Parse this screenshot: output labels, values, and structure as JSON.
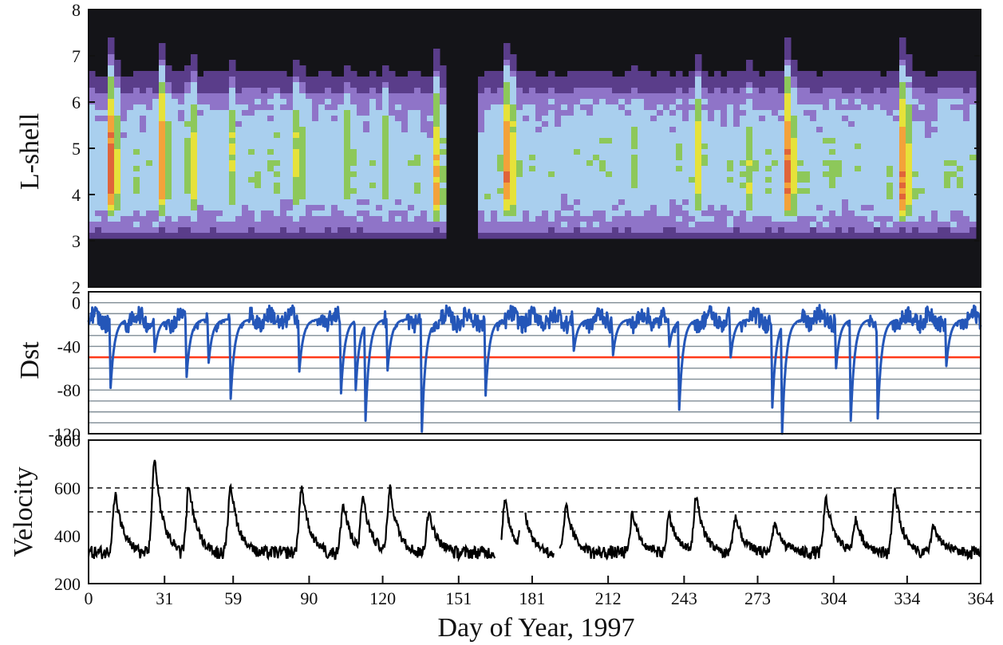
{
  "figure": {
    "xlabel": "Day of Year, 1997"
  },
  "colors": {
    "background_dark": "#141418",
    "dst_line": "#2456b8",
    "dst_threshold": "#ff3a1a",
    "dst_grid": "#7f8c95",
    "velocity_line": "#000000",
    "heat_scale": [
      "#141418",
      "#5a3d8a",
      "#8f74c8",
      "#a9cfee",
      "#8dc85a",
      "#e6e23a",
      "#f3a23a",
      "#e0643a"
    ]
  },
  "chart_data": [
    {
      "type": "heatmap",
      "panel": "lshell",
      "ylabel": "L-shell",
      "xlim": [
        0,
        364
      ],
      "ylim": [
        2,
        8
      ],
      "yticks": [
        2,
        3,
        4,
        5,
        6,
        7,
        8
      ],
      "data_gaps": [
        [
          145,
          160
        ]
      ],
      "events": [
        {
          "day": 9,
          "peak_L": 4.3,
          "intensity": 7,
          "width": 5
        },
        {
          "day": 29,
          "peak_L": 4.6,
          "intensity": 7,
          "width": 5
        },
        {
          "day": 41,
          "peak_L": 4.5,
          "intensity": 7,
          "width": 4
        },
        {
          "day": 57,
          "peak_L": 4.6,
          "intensity": 6,
          "width": 4
        },
        {
          "day": 85,
          "peak_L": 4.7,
          "intensity": 6,
          "width": 5
        },
        {
          "day": 104,
          "peak_L": 4.6,
          "intensity": 6,
          "width": 4
        },
        {
          "day": 120,
          "peak_L": 4.5,
          "intensity": 5,
          "width": 5
        },
        {
          "day": 141,
          "peak_L": 4.0,
          "intensity": 7,
          "width": 4
        },
        {
          "day": 170,
          "peak_L": 4.3,
          "intensity": 7,
          "width": 7
        },
        {
          "day": 195,
          "peak_L": 4.8,
          "intensity": 4,
          "width": 6
        },
        {
          "day": 222,
          "peak_L": 4.7,
          "intensity": 4,
          "width": 6
        },
        {
          "day": 248,
          "peak_L": 4.6,
          "intensity": 6,
          "width": 4
        },
        {
          "day": 268,
          "peak_L": 4.3,
          "intensity": 6,
          "width": 4
        },
        {
          "day": 285,
          "peak_L": 4.2,
          "intensity": 7,
          "width": 5
        },
        {
          "day": 302,
          "peak_L": 4.7,
          "intensity": 5,
          "width": 4
        },
        {
          "day": 332,
          "peak_L": 4.0,
          "intensity": 7,
          "width": 6
        },
        {
          "day": 350,
          "peak_L": 4.5,
          "intensity": 4,
          "width": 5
        }
      ]
    },
    {
      "type": "line",
      "panel": "dst",
      "ylabel": "Dst",
      "xlim": [
        0,
        364
      ],
      "ylim": [
        -120,
        10
      ],
      "yticks": [
        0,
        -40,
        -80,
        -120
      ],
      "threshold": -50,
      "baseline": -15,
      "storms": [
        {
          "day": 9,
          "min": -78
        },
        {
          "day": 27,
          "min": -45
        },
        {
          "day": 40,
          "min": -68
        },
        {
          "day": 49,
          "min": -55
        },
        {
          "day": 58,
          "min": -88
        },
        {
          "day": 86,
          "min": -63
        },
        {
          "day": 103,
          "min": -83
        },
        {
          "day": 109,
          "min": -80
        },
        {
          "day": 113,
          "min": -108
        },
        {
          "day": 122,
          "min": -62
        },
        {
          "day": 136,
          "min": -118
        },
        {
          "day": 162,
          "min": -85
        },
        {
          "day": 198,
          "min": -44
        },
        {
          "day": 214,
          "min": -48
        },
        {
          "day": 237,
          "min": -40
        },
        {
          "day": 241,
          "min": -98
        },
        {
          "day": 262,
          "min": -50
        },
        {
          "day": 279,
          "min": -96
        },
        {
          "day": 283,
          "min": -120
        },
        {
          "day": 305,
          "min": -60
        },
        {
          "day": 311,
          "min": -108
        },
        {
          "day": 322,
          "min": -106
        },
        {
          "day": 350,
          "min": -58
        }
      ]
    },
    {
      "type": "line",
      "panel": "velocity",
      "ylabel": "Velocity",
      "xlabel": "Day of Year, 1997",
      "xlim": [
        0,
        364
      ],
      "ylim": [
        200,
        800
      ],
      "yticks": [
        200,
        400,
        600,
        800
      ],
      "dashed_levels": [
        500,
        600
      ],
      "xticks": [
        0,
        31,
        59,
        90,
        120,
        151,
        181,
        212,
        243,
        273,
        304,
        334,
        364
      ],
      "baseline": 330,
      "data_gaps": [
        [
          166,
          168
        ],
        [
          176,
          178
        ],
        [
          190,
          192
        ]
      ],
      "streams": [
        {
          "day": 11,
          "peak": 575
        },
        {
          "day": 27,
          "peak": 730
        },
        {
          "day": 41,
          "peak": 620
        },
        {
          "day": 58,
          "peak": 620
        },
        {
          "day": 87,
          "peak": 610
        },
        {
          "day": 104,
          "peak": 530
        },
        {
          "day": 112,
          "peak": 565
        },
        {
          "day": 123,
          "peak": 605
        },
        {
          "day": 139,
          "peak": 500
        },
        {
          "day": 170,
          "peak": 545
        },
        {
          "day": 177,
          "peak": 560
        },
        {
          "day": 195,
          "peak": 520
        },
        {
          "day": 222,
          "peak": 495
        },
        {
          "day": 237,
          "peak": 490
        },
        {
          "day": 248,
          "peak": 570
        },
        {
          "day": 264,
          "peak": 480
        },
        {
          "day": 280,
          "peak": 450
        },
        {
          "day": 301,
          "peak": 560
        },
        {
          "day": 313,
          "peak": 470
        },
        {
          "day": 329,
          "peak": 590
        },
        {
          "day": 345,
          "peak": 440
        }
      ]
    }
  ]
}
